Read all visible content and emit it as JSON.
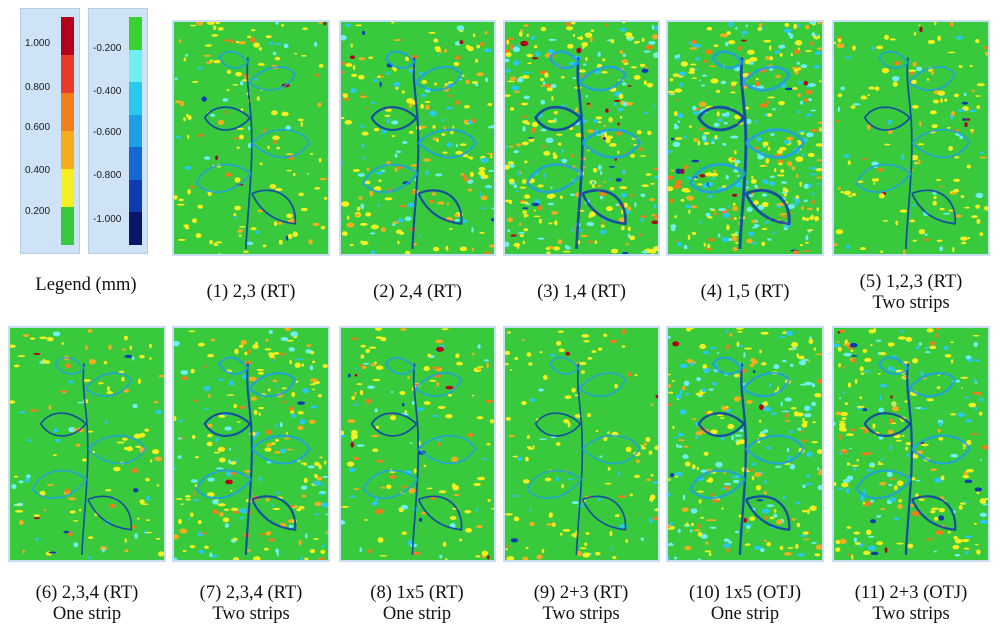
{
  "legend": {
    "label": "Legend (mm)",
    "positive_ticks": [
      "1.000",
      "0.800",
      "0.600",
      "0.400",
      "0.200"
    ],
    "negative_ticks": [
      "-0.200",
      "-0.400",
      "-0.600",
      "-0.800",
      "-1.000"
    ],
    "positive_colors": [
      "#b3001d",
      "#e8392a",
      "#f07f19",
      "#f5ad1e",
      "#f7f020",
      "#38c93c"
    ],
    "negative_colors": [
      "#39d22e",
      "#6ef0f2",
      "#28c8ef",
      "#1e9fe8",
      "#1568d3",
      "#0e3bb0",
      "#0a1768"
    ]
  },
  "panels": [
    {
      "title": "(1) 2,3 (RT)",
      "subtitle": ""
    },
    {
      "title": "(2) 2,4 (RT)",
      "subtitle": ""
    },
    {
      "title": "(3) 1,4 (RT)",
      "subtitle": ""
    },
    {
      "title": "(4) 1,5 (RT)",
      "subtitle": ""
    },
    {
      "title": "(5) 1,2,3 (RT)",
      "subtitle": "Two strips"
    },
    {
      "title": "(6) 2,3,4 (RT)",
      "subtitle": "One strip"
    },
    {
      "title": "(7) 2,3,4 (RT)",
      "subtitle": "Two strips"
    },
    {
      "title": "(8) 1x5 (RT)",
      "subtitle": "One strip"
    },
    {
      "title": "(9) 2+3 (RT)",
      "subtitle": "Two strips"
    },
    {
      "title": "(10) 1x5 (OTJ)",
      "subtitle": "One strip"
    },
    {
      "title": "(11) 2+3 (OTJ)",
      "subtitle": "Two strips"
    }
  ]
}
